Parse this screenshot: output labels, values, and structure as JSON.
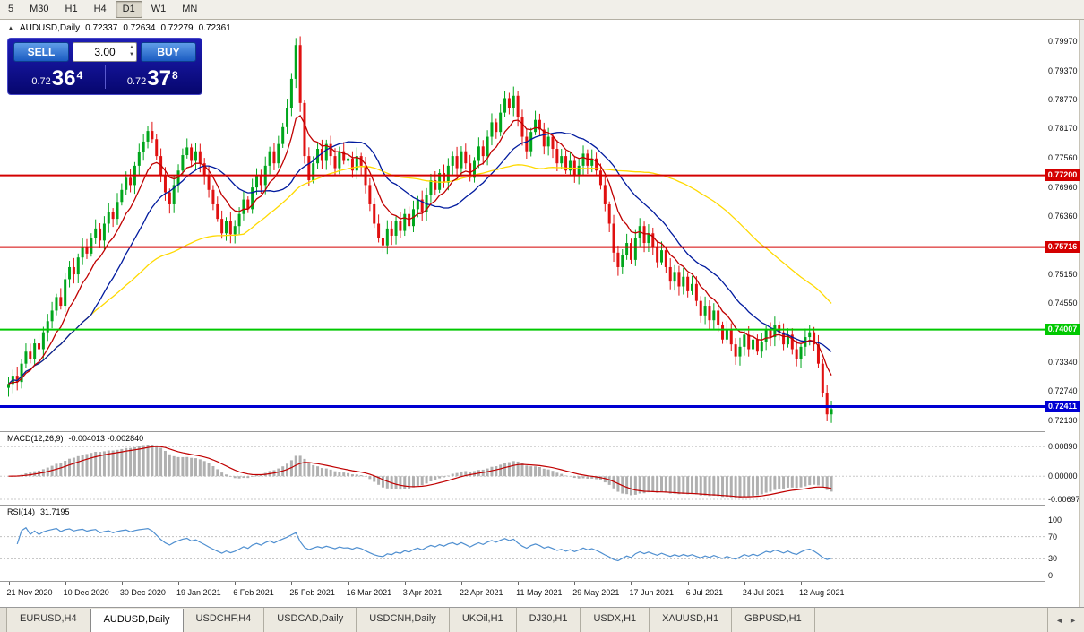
{
  "colors": {
    "candle_up": "#00a61c",
    "candle_down": "#e01010",
    "ma_fast": "#c00000",
    "ma_mid": "#001a9e",
    "ma_slow": "#ffd900",
    "macd_hist": "#b0b0b0",
    "macd_signal": "#c00000",
    "rsi_line": "#4f8fd0",
    "hline_red": "#d40000",
    "hline_green": "#00c800",
    "hline_blue": "#0000d2"
  },
  "icons": {
    "collapse": "▲",
    "spin_up": "▲",
    "spin_down": "▼",
    "tab_scroll_left": "◄",
    "tab_scroll_right": "►"
  },
  "toolbar": {
    "timeframes": [
      "5",
      "M30",
      "H1",
      "H4",
      "D1",
      "W1",
      "MN"
    ],
    "active": "D1"
  },
  "chart_header": {
    "symbol": "AUDUSD,Daily",
    "open": "0.72337",
    "high": "0.72634",
    "low": "0.72279",
    "close": "0.72361"
  },
  "trade_panel": {
    "sell_label": "SELL",
    "buy_label": "BUY",
    "volume": "3.00",
    "sell_price": {
      "prefix": "0.72",
      "big": "36",
      "sup": "4"
    },
    "buy_price": {
      "prefix": "0.72",
      "big": "37",
      "sup": "8"
    }
  },
  "chart_data": {
    "type": "candlestick",
    "title": "AUDUSD,Daily",
    "ylim": [
      0.7205,
      0.8035
    ],
    "first_open": 0.728,
    "closes": [
      0.7288,
      0.7305,
      0.7292,
      0.733,
      0.7355,
      0.734,
      0.7372,
      0.736,
      0.7395,
      0.7418,
      0.744,
      0.7468,
      0.745,
      0.7505,
      0.753,
      0.7515,
      0.755,
      0.7572,
      0.7558,
      0.759,
      0.761,
      0.7585,
      0.762,
      0.7645,
      0.763,
      0.7665,
      0.769,
      0.7715,
      0.77,
      0.774,
      0.7768,
      0.779,
      0.7812,
      0.7795,
      0.776,
      0.772,
      0.7685,
      0.766,
      0.77,
      0.773,
      0.7762,
      0.7778,
      0.775,
      0.777,
      0.7745,
      0.772,
      0.769,
      0.766,
      0.763,
      0.76,
      0.7625,
      0.7598,
      0.7615,
      0.764,
      0.767,
      0.765,
      0.7695,
      0.772,
      0.77,
      0.774,
      0.777,
      0.7745,
      0.7785,
      0.782,
      0.786,
      0.792,
      0.799,
      0.787,
      0.776,
      0.771,
      0.7745,
      0.7775,
      0.775,
      0.7785,
      0.776,
      0.7735,
      0.777,
      0.775,
      0.7755,
      0.773,
      0.776,
      0.774,
      0.77,
      0.766,
      0.762,
      0.759,
      0.7575,
      0.761,
      0.7595,
      0.7625,
      0.7605,
      0.764,
      0.7615,
      0.765,
      0.767,
      0.7645,
      0.768,
      0.771,
      0.769,
      0.7725,
      0.7705,
      0.774,
      0.776,
      0.7735,
      0.777,
      0.7745,
      0.7715,
      0.775,
      0.778,
      0.776,
      0.78,
      0.783,
      0.781,
      0.785,
      0.788,
      0.786,
      0.7885,
      0.784,
      0.78,
      0.777,
      0.781,
      0.7835,
      0.7815,
      0.778,
      0.78,
      0.7775,
      0.7745,
      0.776,
      0.773,
      0.775,
      0.772,
      0.774,
      0.7765,
      0.774,
      0.7755,
      0.773,
      0.77,
      0.766,
      0.762,
      0.756,
      0.753,
      0.7555,
      0.758,
      0.7545,
      0.759,
      0.7615,
      0.758,
      0.76,
      0.757,
      0.754,
      0.7565,
      0.753,
      0.75,
      0.752,
      0.749,
      0.751,
      0.748,
      0.7495,
      0.746,
      0.743,
      0.745,
      0.742,
      0.744,
      0.741,
      0.738,
      0.74,
      0.737,
      0.7345,
      0.7365,
      0.739,
      0.736,
      0.738,
      0.7355,
      0.7375,
      0.74,
      0.7385,
      0.741,
      0.7395,
      0.737,
      0.739,
      0.736,
      0.734,
      0.7365,
      0.7385,
      0.7395,
      0.737,
      0.733,
      0.727,
      0.7225,
      0.7236
    ],
    "moving_averages": [
      {
        "period": 55,
        "method": "sma",
        "color_key": "ma_slow"
      },
      {
        "period": 20,
        "method": "sma",
        "color_key": "ma_mid"
      },
      {
        "period": 9,
        "method": "ema",
        "color_key": "ma_fast"
      }
    ],
    "hlines": [
      {
        "price": 0.772,
        "label": "0.77200",
        "color_key": "hline_red",
        "width": 2
      },
      {
        "price": 0.75716,
        "label": "0.75716",
        "color_key": "hline_red",
        "width": 2
      },
      {
        "price": 0.74007,
        "label": "0.74007",
        "color_key": "hline_green",
        "width": 2
      },
      {
        "price": 0.72411,
        "label": "0.72411",
        "color_key": "hline_blue",
        "width": 3
      }
    ],
    "y_ticks": [
      {
        "v": 0.7997,
        "t": "0.79970"
      },
      {
        "v": 0.7937,
        "t": "0.79370"
      },
      {
        "v": 0.7877,
        "t": "0.78770"
      },
      {
        "v": 0.7817,
        "t": "0.78170"
      },
      {
        "v": 0.7756,
        "t": "0.77560"
      },
      {
        "v": 0.7696,
        "t": "0.76960"
      },
      {
        "v": 0.7636,
        "t": "0.76360"
      },
      {
        "v": 0.7575,
        "t": "0.75750"
      },
      {
        "v": 0.7515,
        "t": "0.75150"
      },
      {
        "v": 0.7455,
        "t": "0.74550"
      },
      {
        "v": 0.7394,
        "t": "0.73940"
      },
      {
        "v": 0.7334,
        "t": "0.73340"
      },
      {
        "v": 0.7274,
        "t": "0.72740"
      },
      {
        "v": 0.7213,
        "t": "0.72130"
      }
    ],
    "macd": {
      "label": "MACD(12,26,9)",
      "values_text": "-0.004013 -0.002840",
      "params": [
        12,
        26,
        9
      ],
      "range": [
        -0.0075,
        0.0095
      ],
      "ticks": [
        {
          "v": 0.0089,
          "t": "0.00890"
        },
        {
          "v": 0.0,
          "t": "0.00000"
        },
        {
          "v": -0.00697,
          "t": "-0.00697"
        }
      ]
    },
    "rsi": {
      "label": "RSI(14)",
      "value_text": "31.7195",
      "period": 14,
      "levels": [
        70,
        30
      ],
      "ticks": [
        {
          "v": 100,
          "t": "100"
        },
        {
          "v": 70,
          "t": "70"
        },
        {
          "v": 30,
          "t": "30"
        },
        {
          "v": 0,
          "t": "0"
        }
      ]
    },
    "x_labels": [
      "21 Nov 2020",
      "10 Dec 2020",
      "30 Dec 2020",
      "19 Jan 2021",
      "6 Feb 2021",
      "25 Feb 2021",
      "16 Mar 2021",
      "3 Apr 2021",
      "22 Apr 2021",
      "11 May 2021",
      "29 May 2021",
      "17 Jun 2021",
      "6 Jul 2021",
      "24 Jul 2021",
      "12 Aug 2021"
    ]
  },
  "tabs": {
    "active_index": 1,
    "items": [
      "EURUSD,H4",
      "AUDUSD,Daily",
      "USDCHF,H4",
      "USDCAD,Daily",
      "USDCNH,Daily",
      "UKOil,H1",
      "DJ30,H1",
      "USDX,H1",
      "XAUUSD,H1",
      "GBPUSD,H1"
    ]
  }
}
